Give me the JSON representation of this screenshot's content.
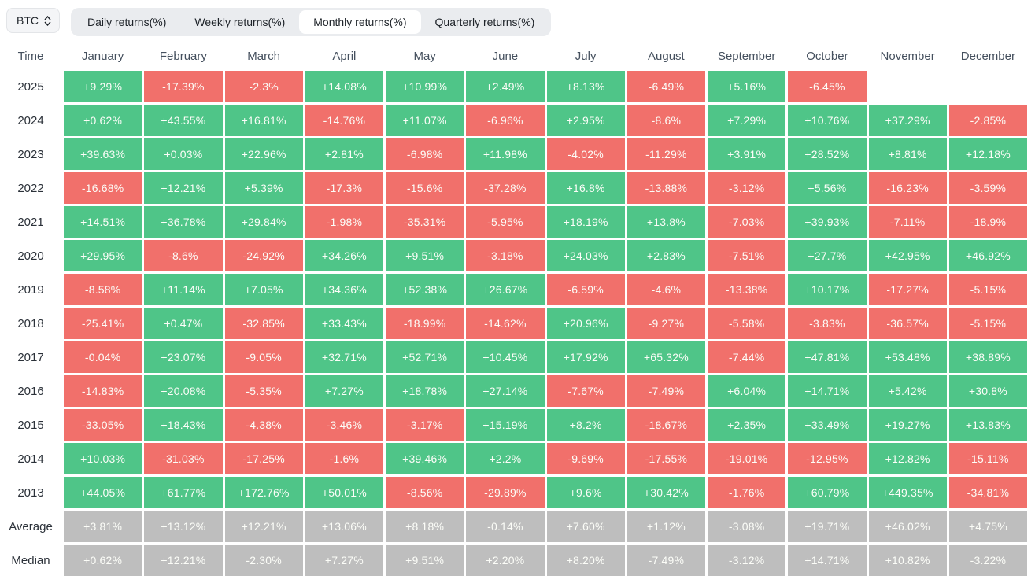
{
  "controls": {
    "symbol_select": {
      "value": "BTC"
    },
    "tabs": [
      {
        "label": "Daily returns(%)",
        "active": false
      },
      {
        "label": "Weekly returns(%)",
        "active": false
      },
      {
        "label": "Monthly returns(%)",
        "active": true
      },
      {
        "label": "Quarterly returns(%)",
        "active": false
      }
    ]
  },
  "colors": {
    "positive": "#4fc588",
    "negative": "#f1706b",
    "neutral": "#bebebe",
    "tab_bar_bg": "#eaecef",
    "active_tab_bg": "#ffffff"
  },
  "chart_data": {
    "type": "heatmap",
    "title": "Monthly returns(%)",
    "row_header": "Time",
    "columns": [
      "January",
      "February",
      "March",
      "April",
      "May",
      "June",
      "July",
      "August",
      "September",
      "October",
      "November",
      "December"
    ],
    "rows": [
      {
        "label": "2025",
        "style": "year",
        "values": [
          "+9.29%",
          "-17.39%",
          "-2.3%",
          "+14.08%",
          "+10.99%",
          "+2.49%",
          "+8.13%",
          "-6.49%",
          "+5.16%",
          "-6.45%",
          null,
          null
        ]
      },
      {
        "label": "2024",
        "style": "year",
        "values": [
          "+0.62%",
          "+43.55%",
          "+16.81%",
          "-14.76%",
          "+11.07%",
          "-6.96%",
          "+2.95%",
          "-8.6%",
          "+7.29%",
          "+10.76%",
          "+37.29%",
          "-2.85%"
        ]
      },
      {
        "label": "2023",
        "style": "year",
        "values": [
          "+39.63%",
          "+0.03%",
          "+22.96%",
          "+2.81%",
          "-6.98%",
          "+11.98%",
          "-4.02%",
          "-11.29%",
          "+3.91%",
          "+28.52%",
          "+8.81%",
          "+12.18%"
        ]
      },
      {
        "label": "2022",
        "style": "year",
        "values": [
          "-16.68%",
          "+12.21%",
          "+5.39%",
          "-17.3%",
          "-15.6%",
          "-37.28%",
          "+16.8%",
          "-13.88%",
          "-3.12%",
          "+5.56%",
          "-16.23%",
          "-3.59%"
        ]
      },
      {
        "label": "2021",
        "style": "year",
        "values": [
          "+14.51%",
          "+36.78%",
          "+29.84%",
          "-1.98%",
          "-35.31%",
          "-5.95%",
          "+18.19%",
          "+13.8%",
          "-7.03%",
          "+39.93%",
          "-7.11%",
          "-18.9%"
        ]
      },
      {
        "label": "2020",
        "style": "year",
        "values": [
          "+29.95%",
          "-8.6%",
          "-24.92%",
          "+34.26%",
          "+9.51%",
          "-3.18%",
          "+24.03%",
          "+2.83%",
          "-7.51%",
          "+27.7%",
          "+42.95%",
          "+46.92%"
        ]
      },
      {
        "label": "2019",
        "style": "year",
        "values": [
          "-8.58%",
          "+11.14%",
          "+7.05%",
          "+34.36%",
          "+52.38%",
          "+26.67%",
          "-6.59%",
          "-4.6%",
          "-13.38%",
          "+10.17%",
          "-17.27%",
          "-5.15%"
        ]
      },
      {
        "label": "2018",
        "style": "year",
        "values": [
          "-25.41%",
          "+0.47%",
          "-32.85%",
          "+33.43%",
          "-18.99%",
          "-14.62%",
          "+20.96%",
          "-9.27%",
          "-5.58%",
          "-3.83%",
          "-36.57%",
          "-5.15%"
        ]
      },
      {
        "label": "2017",
        "style": "year",
        "values": [
          "-0.04%",
          "+23.07%",
          "-9.05%",
          "+32.71%",
          "+52.71%",
          "+10.45%",
          "+17.92%",
          "+65.32%",
          "-7.44%",
          "+47.81%",
          "+53.48%",
          "+38.89%"
        ]
      },
      {
        "label": "2016",
        "style": "year",
        "values": [
          "-14.83%",
          "+20.08%",
          "-5.35%",
          "+7.27%",
          "+18.78%",
          "+27.14%",
          "-7.67%",
          "-7.49%",
          "+6.04%",
          "+14.71%",
          "+5.42%",
          "+30.8%"
        ]
      },
      {
        "label": "2015",
        "style": "year",
        "values": [
          "-33.05%",
          "+18.43%",
          "-4.38%",
          "-3.46%",
          "-3.17%",
          "+15.19%",
          "+8.2%",
          "-18.67%",
          "+2.35%",
          "+33.49%",
          "+19.27%",
          "+13.83%"
        ]
      },
      {
        "label": "2014",
        "style": "year",
        "values": [
          "+10.03%",
          "-31.03%",
          "-17.25%",
          "-1.6%",
          "+39.46%",
          "+2.2%",
          "-9.69%",
          "-17.55%",
          "-19.01%",
          "-12.95%",
          "+12.82%",
          "-15.11%"
        ]
      },
      {
        "label": "2013",
        "style": "year",
        "values": [
          "+44.05%",
          "+61.77%",
          "+172.76%",
          "+50.01%",
          "-8.56%",
          "-29.89%",
          "+9.6%",
          "+30.42%",
          "-1.76%",
          "+60.79%",
          "+449.35%",
          "-34.81%"
        ]
      },
      {
        "label": "Average",
        "style": "summary",
        "values": [
          "+3.81%",
          "+13.12%",
          "+12.21%",
          "+13.06%",
          "+8.18%",
          "-0.14%",
          "+7.60%",
          "+1.12%",
          "-3.08%",
          "+19.71%",
          "+46.02%",
          "+4.75%"
        ]
      },
      {
        "label": "Median",
        "style": "summary",
        "values": [
          "+0.62%",
          "+12.21%",
          "-2.30%",
          "+7.27%",
          "+9.51%",
          "+2.20%",
          "+8.20%",
          "-7.49%",
          "-3.12%",
          "+14.71%",
          "+10.82%",
          "-3.22%"
        ]
      }
    ]
  }
}
